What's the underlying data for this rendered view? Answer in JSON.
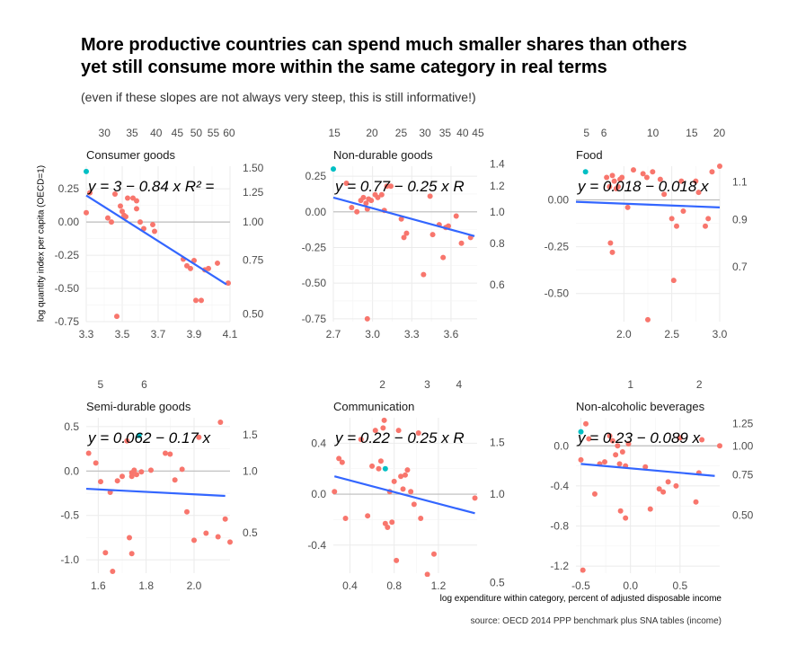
{
  "title_line1": "More productive countries can spend much smaller shares than others",
  "title_line2": "yet still consume more within the same category in real terms",
  "subtitle": "(even if these slopes are not always very steep, this is still informative!)",
  "ylabel": "log quantity index per capita (OECD=1)",
  "xlabel": "log expenditure within category, percent of adjusted disposable income",
  "caption": "source: OECD 2014 PPP benchmark plus SNA tables (income)",
  "colors": {
    "point": "#F8766D",
    "highlight": "#00BFC4",
    "line": "#3366FF",
    "grid": "#ebebeb",
    "zero": "#bdbdbd"
  },
  "chart_data": [
    {
      "type": "scatter",
      "title": "Consumer goods",
      "equation": "y = 3 − 0.84 x    R² =",
      "xlim": [
        3.3,
        4.1
      ],
      "ylim": [
        -0.75,
        0.42
      ],
      "xticks": [
        3.3,
        3.5,
        3.7,
        3.9,
        4.1
      ],
      "xtick_labels": [
        "3.3",
        "3.5",
        "3.7",
        "3.9",
        "4.1"
      ],
      "yticks": [
        0.25,
        0.0,
        -0.25,
        -0.5,
        -0.75
      ],
      "ytick_labels": [
        "0.25",
        "0.00",
        "-0.25",
        "-0.50",
        "-0.75"
      ],
      "top_ticks": [
        30,
        35,
        40,
        45,
        50,
        55,
        60
      ],
      "top_tick_labels": [
        "30",
        "35",
        "40",
        "45",
        "50",
        "55",
        "60"
      ],
      "right_ticks": [
        1.5,
        1.25,
        1.0,
        0.75,
        0.5
      ],
      "right_tick_labels": [
        "1.50",
        "1.25",
        "1.00",
        "0.75",
        "0.50"
      ],
      "trend": {
        "x": [
          3.3,
          4.08
        ],
        "y": [
          0.2,
          -0.47
        ]
      },
      "highlight": {
        "x": 3.3,
        "y": 0.38
      },
      "points": {
        "x": [
          3.3,
          3.32,
          3.42,
          3.44,
          3.46,
          3.49,
          3.5,
          3.51,
          3.52,
          3.53,
          3.56,
          3.58,
          3.58,
          3.6,
          3.62,
          3.67,
          3.68,
          3.84,
          3.86,
          3.88,
          3.9,
          3.91,
          3.94,
          3.96,
          3.98,
          4.03,
          3.47,
          4.09
        ],
        "y": [
          0.07,
          0.22,
          0.03,
          0.0,
          0.21,
          0.12,
          0.08,
          0.05,
          0.04,
          0.18,
          0.18,
          0.16,
          0.1,
          0.0,
          -0.05,
          -0.02,
          -0.07,
          -0.28,
          -0.33,
          -0.35,
          -0.29,
          -0.59,
          -0.59,
          -0.36,
          -0.35,
          -0.31,
          -0.71,
          -0.46
        ]
      }
    },
    {
      "type": "scatter",
      "title": "Non-durable goods",
      "equation": "y = 0.77 − 0.25 x    R",
      "xlim": [
        2.7,
        3.8
      ],
      "ylim": [
        -0.77,
        0.32
      ],
      "xticks": [
        2.7,
        3.0,
        3.3,
        3.6
      ],
      "xtick_labels": [
        "2.7",
        "3.0",
        "3.3",
        "3.6"
      ],
      "yticks": [
        0.25,
        0.0,
        -0.25,
        -0.5,
        -0.75
      ],
      "ytick_labels": [
        "0.25",
        "0.00",
        "-0.25",
        "-0.50",
        "-0.75"
      ],
      "top_ticks": [
        15,
        20,
        25,
        30,
        35,
        40,
        45
      ],
      "top_tick_labels": [
        "15",
        "20",
        "25",
        "30",
        "35",
        "40",
        "45"
      ],
      "right_ticks": [
        1.4,
        1.2,
        1.0,
        0.8,
        0.6
      ],
      "right_tick_labels": [
        "1.4",
        "1.2",
        "1.0",
        "0.8",
        "0.6"
      ],
      "trend": {
        "x": [
          2.7,
          3.78
        ],
        "y": [
          0.1,
          -0.17
        ]
      },
      "highlight": {
        "x": 2.7,
        "y": 0.3
      },
      "points": {
        "x": [
          2.8,
          2.84,
          2.88,
          2.91,
          2.93,
          2.95,
          2.96,
          2.97,
          2.99,
          3.02,
          3.04,
          3.07,
          3.09,
          3.11,
          3.14,
          3.22,
          3.24,
          3.26,
          3.39,
          3.44,
          3.46,
          3.51,
          3.54,
          3.56,
          3.58,
          3.64,
          3.68,
          3.75,
          2.96
        ],
        "y": [
          0.2,
          0.03,
          0.0,
          0.08,
          0.1,
          0.06,
          0.02,
          0.09,
          0.08,
          0.12,
          0.1,
          0.12,
          0.01,
          0.18,
          0.18,
          -0.05,
          -0.18,
          -0.15,
          -0.44,
          0.11,
          -0.16,
          -0.09,
          -0.32,
          -0.11,
          -0.1,
          -0.03,
          -0.22,
          -0.18,
          -0.75
        ]
      }
    },
    {
      "type": "scatter",
      "title": "Food",
      "equation": "y = 0.018 − 0.018 x",
      "xlim": [
        1.5,
        3.0
      ],
      "ylim": [
        -0.65,
        0.18
      ],
      "xticks": [
        2.0,
        2.5,
        3.0
      ],
      "xtick_labels": [
        "2.0",
        "2.5",
        "3.0"
      ],
      "yticks": [
        0.0,
        -0.25,
        -0.5
      ],
      "ytick_labels": [
        "0.00",
        "-0.25",
        "-0.50"
      ],
      "top_ticks": [
        5,
        6,
        10,
        15,
        20
      ],
      "top_tick_labels": [
        "5",
        "6",
        "10",
        "15",
        "20"
      ],
      "right_ticks": [
        1.1,
        0.9,
        0.7
      ],
      "right_tick_labels": [
        "1.1",
        "0.9",
        "0.7"
      ],
      "trend": {
        "x": [
          1.5,
          3.0
        ],
        "y": [
          -0.01,
          -0.04
        ]
      },
      "highlight": {
        "x": 1.6,
        "y": 0.15
      },
      "points": {
        "x": [
          1.82,
          1.85,
          1.88,
          1.9,
          1.92,
          1.94,
          1.96,
          1.98,
          2.04,
          2.1,
          2.2,
          2.24,
          2.3,
          2.38,
          2.42,
          2.5,
          2.55,
          2.6,
          2.62,
          2.75,
          2.78,
          2.85,
          2.88,
          2.92,
          3.0,
          1.86,
          1.88,
          2.25,
          2.52
        ],
        "y": [
          0.12,
          0.07,
          0.13,
          0.1,
          0.06,
          0.07,
          0.11,
          0.12,
          -0.04,
          0.16,
          0.14,
          0.12,
          0.15,
          0.11,
          0.03,
          -0.1,
          -0.14,
          0.1,
          -0.06,
          0.1,
          0.04,
          -0.14,
          -0.1,
          0.15,
          0.18,
          -0.23,
          -0.28,
          -0.64,
          -0.43
        ]
      }
    },
    {
      "type": "scatter",
      "title": "Semi-durable goods",
      "equation": "y = 0.062 − 0.17 x",
      "xlim": [
        1.55,
        2.15
      ],
      "ylim": [
        -1.15,
        0.6
      ],
      "xticks": [
        1.6,
        1.8,
        2.0
      ],
      "xtick_labels": [
        "1.6",
        "1.8",
        "2.0"
      ],
      "yticks": [
        0.5,
        0.0,
        -0.5,
        -1.0
      ],
      "ytick_labels": [
        "0.5",
        "0.0",
        "-0.5",
        "-1.0"
      ],
      "top_ticks": [
        5,
        6
      ],
      "top_tick_labels": [
        "5",
        "6"
      ],
      "right_ticks": [
        1.5,
        1.0,
        0.5
      ],
      "right_tick_labels": [
        "1.5",
        "1.0",
        "0.5"
      ],
      "trend": {
        "x": [
          1.55,
          2.13
        ],
        "y": [
          -0.2,
          -0.28
        ]
      },
      "highlight": {
        "x": 1.77,
        "y": 0.4
      },
      "points": {
        "x": [
          1.56,
          1.59,
          1.61,
          1.65,
          1.68,
          1.7,
          1.72,
          1.74,
          1.75,
          1.76,
          1.78,
          1.82,
          1.88,
          1.9,
          1.92,
          1.95,
          1.97,
          2.0,
          2.02,
          2.05,
          2.1,
          2.11,
          2.13,
          2.15,
          1.63,
          1.66,
          1.73,
          1.74,
          1.74
        ],
        "y": [
          0.2,
          0.09,
          -0.12,
          -0.24,
          -0.11,
          -0.06,
          0.34,
          -0.02,
          0.01,
          -0.04,
          -0.01,
          0.01,
          0.2,
          0.19,
          -0.1,
          0.02,
          -0.46,
          -0.78,
          0.38,
          -0.7,
          -0.74,
          0.55,
          -0.54,
          -0.8,
          -0.92,
          -1.13,
          -0.75,
          -0.93,
          -0.06
        ]
      }
    },
    {
      "type": "scatter",
      "title": "Communication",
      "equation": "y = 0.22 − 0.25 x    R",
      "xlim": [
        0.25,
        1.55
      ],
      "ylim": [
        -0.62,
        0.6
      ],
      "xticks": [
        0.4,
        0.8,
        1.2
      ],
      "xtick_labels": [
        "0.4",
        "0.8",
        "1.2"
      ],
      "yticks": [
        0.4,
        0.0,
        -0.4
      ],
      "ytick_labels": [
        "0.4",
        "0.0",
        "-0.4"
      ],
      "top_ticks": [
        2,
        3,
        4
      ],
      "top_tick_labels": [
        "2",
        "3",
        "4"
      ],
      "right_ticks": [
        1.5,
        1.0,
        0.5
      ],
      "right_tick_labels": [
        "1.5",
        "1.0",
        "0.5"
      ],
      "trend": {
        "x": [
          0.26,
          1.53
        ],
        "y": [
          0.14,
          -0.15
        ]
      },
      "highlight": {
        "x": 0.72,
        "y": 0.2
      },
      "points": {
        "x": [
          0.26,
          0.3,
          0.33,
          0.36,
          0.5,
          0.56,
          0.6,
          0.63,
          0.66,
          0.68,
          0.7,
          0.71,
          0.72,
          0.74,
          0.76,
          0.78,
          0.8,
          0.82,
          0.84,
          0.86,
          0.88,
          0.9,
          0.92,
          0.95,
          0.98,
          1.02,
          1.04,
          1.1,
          1.16,
          1.53
        ],
        "y": [
          0.02,
          0.28,
          0.25,
          -0.19,
          0.43,
          -0.17,
          0.22,
          0.5,
          0.2,
          0.26,
          0.52,
          0.58,
          -0.23,
          -0.26,
          0.02,
          -0.22,
          0.1,
          -0.52,
          0.5,
          0.14,
          0.04,
          0.15,
          0.19,
          0.02,
          -0.08,
          0.48,
          -0.19,
          -0.63,
          -0.47,
          -0.03
        ]
      }
    },
    {
      "type": "scatter",
      "title": "Non-alcoholic beverages",
      "equation": "y = 0.23 − 0.089 x",
      "xlim": [
        -0.55,
        0.9
      ],
      "ylim": [
        -1.27,
        0.28
      ],
      "xticks": [
        -0.5,
        0.0,
        0.5
      ],
      "xtick_labels": [
        "-0.5",
        "0.0",
        "0.5"
      ],
      "yticks": [
        0.0,
        -0.4,
        -0.8,
        -1.2
      ],
      "ytick_labels": [
        "0.0",
        "-0.4",
        "-0.8",
        "-1.2"
      ],
      "top_ticks": [
        1,
        2
      ],
      "top_tick_labels": [
        "1",
        "2"
      ],
      "right_ticks": [
        1.25,
        1.0,
        0.75,
        0.5
      ],
      "right_tick_labels": [
        "1.25",
        "1.00",
        "0.75",
        "0.50"
      ],
      "trend": {
        "x": [
          -0.5,
          0.85
        ],
        "y": [
          -0.18,
          -0.3
        ]
      },
      "highlight": {
        "x": -0.5,
        "y": 0.14
      },
      "points": {
        "x": [
          -0.5,
          -0.45,
          -0.42,
          -0.36,
          -0.31,
          -0.26,
          -0.21,
          -0.18,
          -0.15,
          -0.13,
          -0.11,
          -0.08,
          -0.05,
          -0.02,
          0.15,
          0.2,
          0.29,
          0.33,
          0.38,
          0.46,
          0.5,
          0.66,
          0.69,
          0.72,
          0.9,
          -0.48,
          -0.1,
          -0.05
        ],
        "y": [
          -0.14,
          0.22,
          0.07,
          -0.48,
          -0.18,
          -0.16,
          0.1,
          0.05,
          -0.09,
          0.0,
          -0.18,
          -0.06,
          -0.2,
          0.02,
          -0.21,
          -0.63,
          -0.43,
          -0.46,
          -0.36,
          -0.4,
          0.08,
          -0.56,
          -0.27,
          0.06,
          0.0,
          -1.24,
          -0.65,
          -0.72
        ]
      }
    }
  ]
}
